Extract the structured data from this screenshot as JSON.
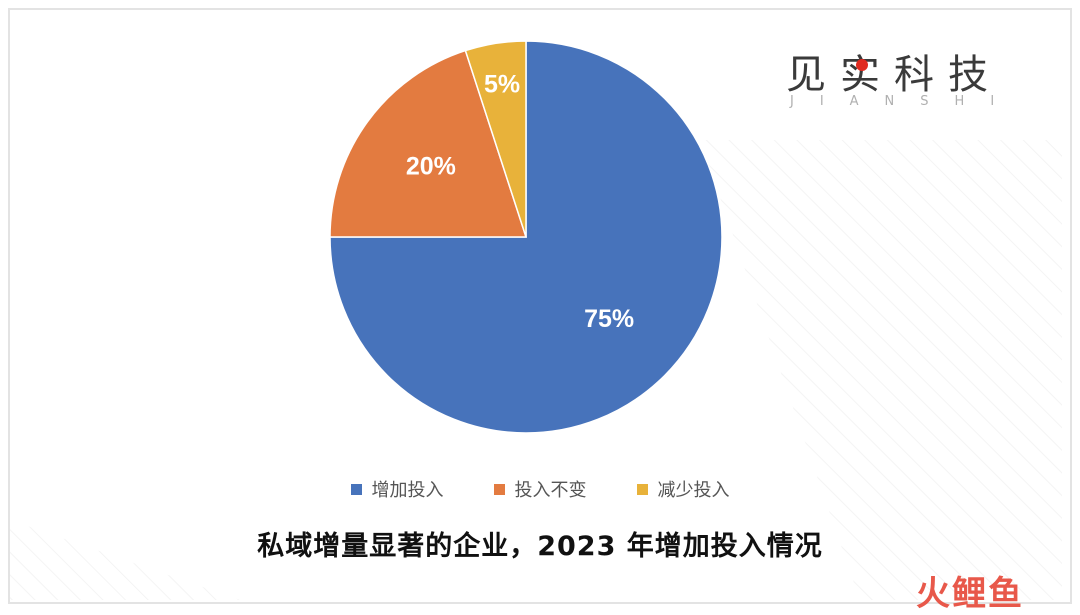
{
  "brand": {
    "name": "见实科技",
    "subtitle": "JIANSHI"
  },
  "watermark": {
    "text": "火鲤鱼"
  },
  "colors": {
    "increase": "#4773bb",
    "unchanged": "#e37b40",
    "decrease": "#e8b23a"
  },
  "chart_data": {
    "type": "pie",
    "title": "私域增量显著的企业，2023 年增加投入情况",
    "categories": [
      "增加投入",
      "投入不变",
      "减少投入"
    ],
    "values": [
      75,
      20,
      5
    ],
    "labels": [
      "75%",
      "20%",
      "5%"
    ],
    "colors": [
      "#4773bb",
      "#e37b40",
      "#e8b23a"
    ],
    "legend_position": "bottom"
  }
}
